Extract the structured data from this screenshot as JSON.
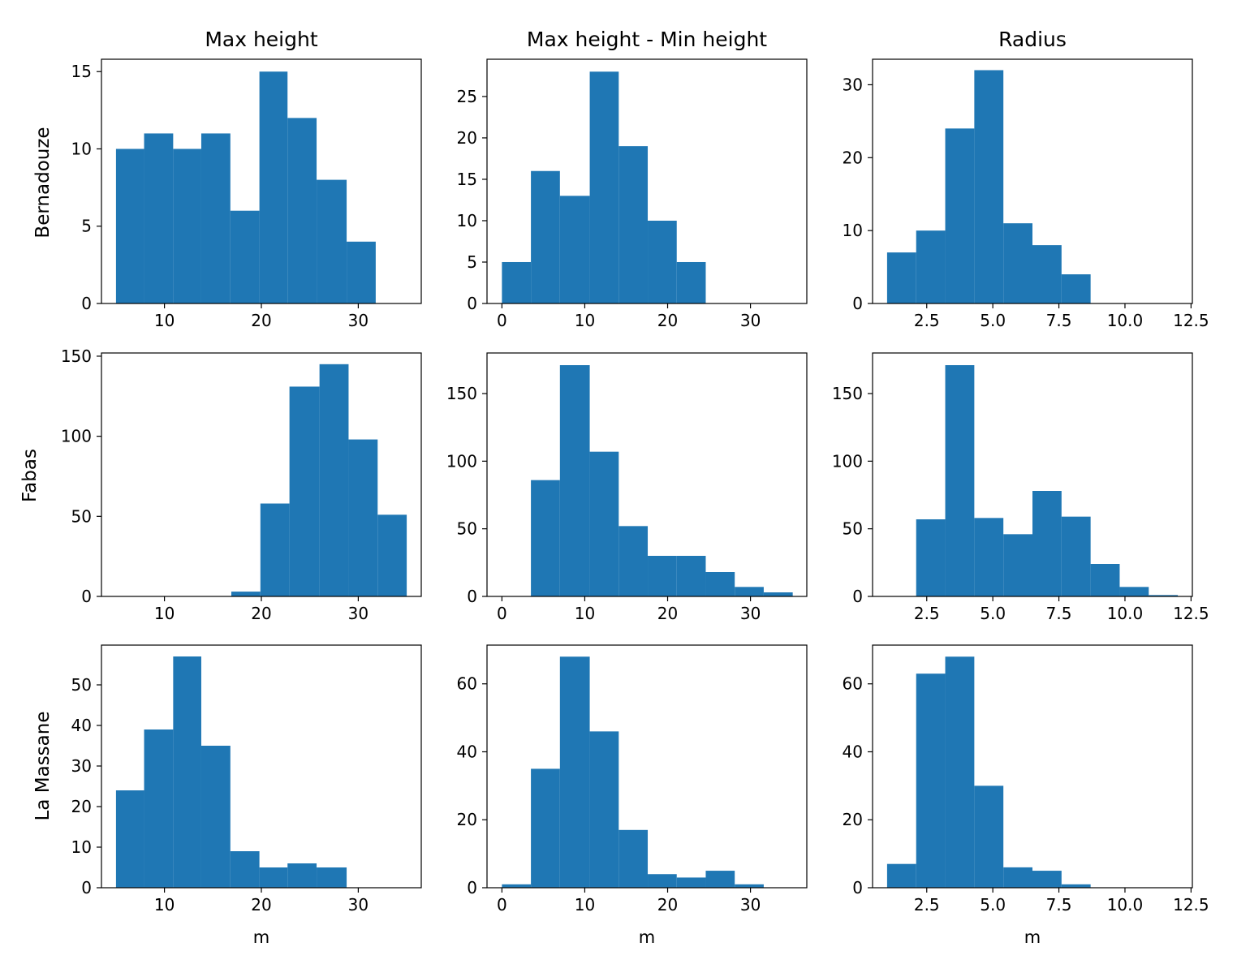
{
  "row_labels": [
    "Bernadouze",
    "Fabas",
    "La Massane"
  ],
  "col_titles": [
    "Max height",
    "Max height - Min height",
    "Radius"
  ],
  "xlabel": "m",
  "bar_color": "#1f77b4",
  "chart_data": [
    {
      "type": "bar",
      "row": "Bernadouze",
      "title": "Max height",
      "xlim": [
        3.5,
        36.5
      ],
      "ylim": [
        0,
        15.8
      ],
      "xticks": [
        10,
        20,
        30
      ],
      "yticks": [
        0,
        5,
        10,
        15
      ],
      "bin_edges": [
        5.0,
        7.9,
        10.9,
        13.8,
        16.8,
        19.8,
        22.7,
        25.7,
        28.8,
        31.8
      ],
      "values": [
        10,
        11,
        10,
        11,
        6,
        15,
        12,
        8,
        4
      ]
    },
    {
      "type": "bar",
      "row": "Bernadouze",
      "title": "Max height - Min height",
      "xlim": [
        -1.8,
        36.8
      ],
      "ylim": [
        0,
        29.5
      ],
      "xticks": [
        0,
        10,
        20,
        30
      ],
      "yticks": [
        0,
        5,
        10,
        15,
        20,
        25
      ],
      "bin_edges": [
        0.0,
        3.5,
        7.0,
        10.6,
        14.1,
        17.6,
        21.1,
        24.6
      ],
      "values": [
        5,
        16,
        13,
        28,
        19,
        10,
        5
      ]
    },
    {
      "type": "bar",
      "row": "Bernadouze",
      "title": "Radius",
      "xlim": [
        0.45,
        12.55
      ],
      "ylim": [
        0,
        33.5
      ],
      "xticks": [
        2.5,
        5.0,
        7.5,
        10.0,
        12.5
      ],
      "yticks": [
        0,
        10,
        20,
        30
      ],
      "bin_edges": [
        1.0,
        2.1,
        3.2,
        4.3,
        5.4,
        6.5,
        7.6,
        8.7
      ],
      "values": [
        7,
        10,
        24,
        32,
        11,
        8,
        4
      ]
    },
    {
      "type": "bar",
      "row": "Fabas",
      "title": "Max height",
      "xlim": [
        3.5,
        36.5
      ],
      "ylim": [
        0,
        152
      ],
      "xticks": [
        10,
        20,
        30
      ],
      "yticks": [
        0,
        50,
        100,
        150
      ],
      "bin_edges": [
        16.9,
        19.9,
        22.9,
        26.0,
        29.0,
        32.0,
        35.0
      ],
      "values": [
        3,
        58,
        131,
        145,
        98,
        51
      ]
    },
    {
      "type": "bar",
      "row": "Fabas",
      "title": "Max height - Min height",
      "xlim": [
        -1.8,
        36.8
      ],
      "ylim": [
        0,
        180
      ],
      "xticks": [
        0,
        10,
        20,
        30
      ],
      "yticks": [
        0,
        50,
        100,
        150
      ],
      "bin_edges": [
        3.5,
        7.0,
        10.6,
        14.1,
        17.6,
        21.1,
        24.6,
        28.1,
        31.6,
        35.1
      ],
      "values": [
        86,
        171,
        107,
        52,
        30,
        30,
        18,
        7,
        3
      ]
    },
    {
      "type": "bar",
      "row": "Fabas",
      "title": "Radius",
      "xlim": [
        0.45,
        12.55
      ],
      "ylim": [
        0,
        180
      ],
      "xticks": [
        2.5,
        5.0,
        7.5,
        10.0,
        12.5
      ],
      "yticks": [
        0,
        50,
        100,
        150
      ],
      "bin_edges": [
        2.1,
        3.2,
        4.3,
        5.4,
        6.5,
        7.6,
        8.7,
        9.8,
        10.9,
        12.0
      ],
      "values": [
        57,
        171,
        58,
        46,
        78,
        59,
        24,
        7,
        1
      ]
    },
    {
      "type": "bar",
      "row": "La Massane",
      "title": "Max height",
      "xlim": [
        3.5,
        36.5
      ],
      "ylim": [
        0,
        59.8
      ],
      "xticks": [
        10,
        20,
        30
      ],
      "yticks": [
        0,
        10,
        20,
        30,
        40,
        50
      ],
      "bin_edges": [
        5.0,
        7.9,
        10.9,
        13.8,
        16.8,
        19.8,
        22.7,
        25.7,
        28.8
      ],
      "values": [
        24,
        39,
        57,
        35,
        9,
        5,
        6,
        5
      ]
    },
    {
      "type": "bar",
      "row": "La Massane",
      "title": "Max height - Min height",
      "xlim": [
        -1.8,
        36.8
      ],
      "ylim": [
        0,
        71.4
      ],
      "xticks": [
        0,
        10,
        20,
        30
      ],
      "yticks": [
        0,
        20,
        40,
        60
      ],
      "bin_edges": [
        0.0,
        3.5,
        7.0,
        10.6,
        14.1,
        17.6,
        21.1,
        24.6,
        28.1,
        31.6
      ],
      "values": [
        1,
        35,
        68,
        46,
        17,
        4,
        3,
        5,
        1
      ]
    },
    {
      "type": "bar",
      "row": "La Massane",
      "title": "Radius",
      "xlim": [
        0.45,
        12.55
      ],
      "ylim": [
        0,
        71.4
      ],
      "xticks": [
        2.5,
        5.0,
        7.5,
        10.0,
        12.5
      ],
      "yticks": [
        0,
        20,
        40,
        60
      ],
      "bin_edges": [
        1.0,
        2.1,
        3.2,
        4.3,
        5.4,
        6.5,
        7.6,
        8.7
      ],
      "values": [
        7,
        63,
        68,
        30,
        6,
        5,
        1
      ]
    }
  ]
}
